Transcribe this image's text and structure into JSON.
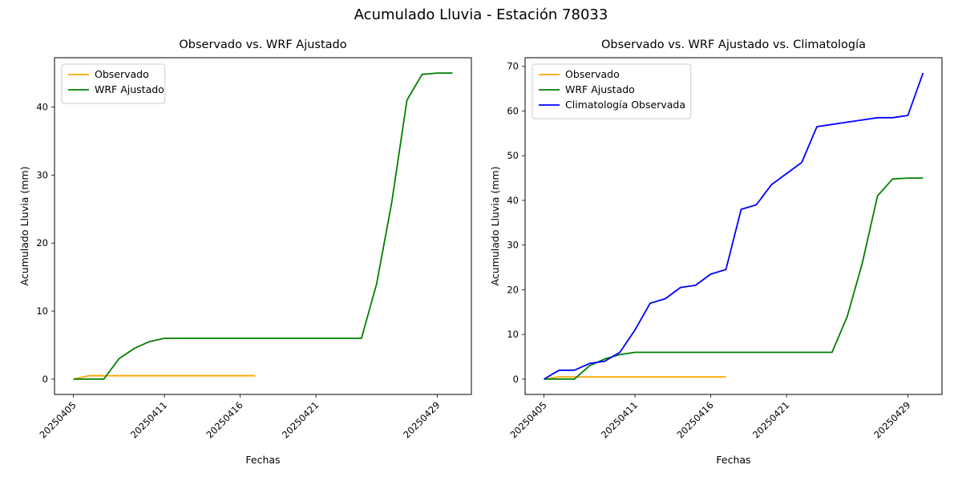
{
  "figure": {
    "title": "Acumulado Lluvia - Estación 78033",
    "background": "#ffffff"
  },
  "chart_data": [
    {
      "type": "line",
      "title": "Observado vs. WRF Ajustado",
      "xlabel": "Fechas",
      "ylabel": "Acumulado Lluvia (mm)",
      "x_dates": [
        "20250405",
        "20250406",
        "20250407",
        "20250408",
        "20250409",
        "20250410",
        "20250411",
        "20250412",
        "20250413",
        "20250414",
        "20250415",
        "20250416",
        "20250417",
        "20250418",
        "20250419",
        "20250420",
        "20250421",
        "20250422",
        "20250423",
        "20250424",
        "20250425",
        "20250426",
        "20250427",
        "20250428",
        "20250429",
        "20250430"
      ],
      "x_ticks": [
        {
          "index": 0,
          "label": "20250405"
        },
        {
          "index": 6,
          "label": "20250411"
        },
        {
          "index": 11,
          "label": "20250416"
        },
        {
          "index": 16,
          "label": "20250421"
        },
        {
          "index": 24,
          "label": "20250429"
        }
      ],
      "y_ticks": [
        0,
        10,
        20,
        30,
        40
      ],
      "xlim": [
        -1.25,
        26.25
      ],
      "ylim": [
        -2.25,
        47.25
      ],
      "grid": false,
      "legend_position": "upper-left",
      "series": [
        {
          "name": "Observado",
          "color": "#ffa500",
          "values": [
            0,
            0.5,
            0.5,
            0.5,
            0.5,
            0.5,
            0.5,
            0.5,
            0.5,
            0.5,
            0.5,
            0.5,
            0.5,
            null,
            null,
            null,
            null,
            null,
            null,
            null,
            null,
            null,
            null,
            null,
            null,
            null
          ]
        },
        {
          "name": "WRF Ajustado",
          "color": "#008000",
          "values": [
            0,
            0,
            0,
            3,
            4.5,
            5.5,
            6,
            6,
            6,
            6,
            6,
            6,
            6,
            6,
            6,
            6,
            6,
            6,
            6,
            6,
            14,
            26,
            41,
            44.8,
            45,
            45
          ]
        }
      ]
    },
    {
      "type": "line",
      "title": "Observado vs. WRF Ajustado vs. Climatología",
      "xlabel": "Fechas",
      "ylabel": "Acumulado Lluvia (mm)",
      "x_dates": [
        "20250405",
        "20250406",
        "20250407",
        "20250408",
        "20250409",
        "20250410",
        "20250411",
        "20250412",
        "20250413",
        "20250414",
        "20250415",
        "20250416",
        "20250417",
        "20250418",
        "20250419",
        "20250420",
        "20250421",
        "20250422",
        "20250423",
        "20250424",
        "20250425",
        "20250426",
        "20250427",
        "20250428",
        "20250429",
        "20250430"
      ],
      "x_ticks": [
        {
          "index": 0,
          "label": "20250405"
        },
        {
          "index": 6,
          "label": "20250411"
        },
        {
          "index": 11,
          "label": "20250416"
        },
        {
          "index": 16,
          "label": "20250421"
        },
        {
          "index": 24,
          "label": "20250429"
        }
      ],
      "y_ticks": [
        0,
        10,
        20,
        30,
        40,
        50,
        60,
        70
      ],
      "xlim": [
        -1.25,
        26.25
      ],
      "ylim": [
        -3.425,
        71.925
      ],
      "grid": false,
      "legend_position": "upper-left",
      "series": [
        {
          "name": "Observado",
          "color": "#ffa500",
          "values": [
            0,
            0.5,
            0.5,
            0.5,
            0.5,
            0.5,
            0.5,
            0.5,
            0.5,
            0.5,
            0.5,
            0.5,
            0.5,
            null,
            null,
            null,
            null,
            null,
            null,
            null,
            null,
            null,
            null,
            null,
            null,
            null
          ]
        },
        {
          "name": "WRF Ajustado",
          "color": "#008000",
          "values": [
            0,
            0,
            0,
            3,
            4.5,
            5.5,
            6,
            6,
            6,
            6,
            6,
            6,
            6,
            6,
            6,
            6,
            6,
            6,
            6,
            6,
            14,
            26,
            41,
            44.8,
            45,
            45
          ]
        },
        {
          "name": "Climatología Observada",
          "color": "#0000ff",
          "values": [
            0,
            2,
            2,
            3.5,
            4,
            6,
            11,
            17,
            18,
            20.5,
            21,
            23.5,
            24.5,
            38,
            39,
            43.5,
            46,
            48.5,
            56.5,
            57,
            57.5,
            58,
            58.5,
            58.5,
            59,
            68.5
          ]
        }
      ]
    }
  ]
}
